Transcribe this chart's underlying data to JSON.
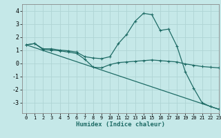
{
  "xlabel": "Humidex (Indice chaleur)",
  "xlim": [
    -0.5,
    23
  ],
  "ylim": [
    -3.8,
    4.5
  ],
  "xticks": [
    0,
    1,
    2,
    3,
    4,
    5,
    6,
    7,
    8,
    9,
    10,
    11,
    12,
    13,
    14,
    15,
    16,
    17,
    18,
    19,
    20,
    21,
    22,
    23
  ],
  "yticks": [
    -3,
    -2,
    -1,
    0,
    1,
    2,
    3,
    4
  ],
  "background_color": "#c5e8e8",
  "grid_color": "#afd4d4",
  "line_color": "#1e6b65",
  "line1_x": [
    0,
    1,
    2,
    3,
    4,
    5,
    6,
    7,
    8,
    9,
    10,
    11,
    12,
    13,
    14,
    15,
    16,
    17,
    18,
    19,
    20,
    21,
    22,
    23
  ],
  "line1_y": [
    1.4,
    1.5,
    1.1,
    1.1,
    1.0,
    0.95,
    0.85,
    0.5,
    0.4,
    0.35,
    0.5,
    1.5,
    2.2,
    3.2,
    3.8,
    3.7,
    2.5,
    2.6,
    1.3,
    -0.65,
    -1.9,
    -3.0,
    -3.3,
    -3.5
  ],
  "line2_x": [
    0,
    1,
    2,
    3,
    4,
    5,
    6,
    7,
    8,
    9,
    10,
    11,
    12,
    13,
    14,
    15,
    16,
    17,
    18,
    19,
    20,
    21,
    22,
    23
  ],
  "line2_y": [
    1.4,
    1.5,
    1.05,
    1.0,
    0.95,
    0.85,
    0.75,
    0.3,
    -0.3,
    -0.35,
    -0.1,
    0.05,
    0.1,
    0.15,
    0.2,
    0.25,
    0.2,
    0.15,
    0.1,
    -0.05,
    -0.15,
    -0.25,
    -0.3,
    -0.35
  ],
  "line3_x": [
    0,
    23
  ],
  "line3_y": [
    1.4,
    -3.5
  ]
}
